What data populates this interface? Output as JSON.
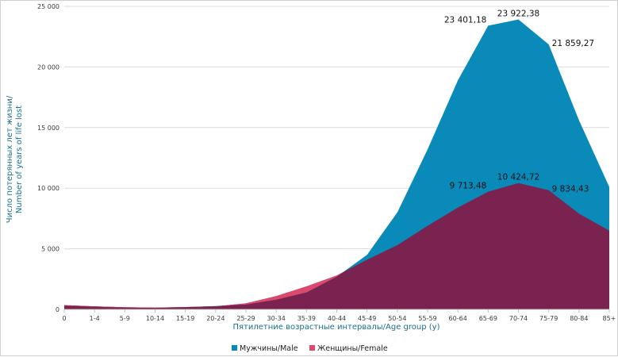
{
  "chart_data": {
    "type": "area",
    "xlabel": "Пятилетние возрастные интервалы/Age group (y)",
    "ylabel_line1": "Число потерянных лет жизни/",
    "ylabel_line2": "Number of years of life lost",
    "ylim": [
      0,
      25000
    ],
    "y_ticks": [
      0,
      5000,
      10000,
      15000,
      20000,
      25000
    ],
    "y_tick_labels": [
      "0",
      "5 000",
      "10 000",
      "15 000",
      "20 000",
      "25 000"
    ],
    "grid": "horizontal",
    "legend_position": "bottom",
    "categories": [
      "0",
      "1-4",
      "5-9",
      "10-14",
      "15-19",
      "20-24",
      "25-29",
      "30-34",
      "35-39",
      "40-44",
      "45-49",
      "50-54",
      "55-59",
      "60-64",
      "65-69",
      "70-74",
      "75-79",
      "80-84",
      "85+"
    ],
    "series": [
      {
        "name": "Мужчины/Male",
        "color": "#0a8ab8",
        "values": [
          300,
          220,
          150,
          120,
          180,
          280,
          400,
          800,
          1400,
          2700,
          4500,
          8000,
          13200,
          18900,
          23401.18,
          23922.38,
          21859.27,
          15600,
          10100
        ],
        "labels": {
          "14": "23 401,18",
          "15": "23 922,38",
          "16": "21 859,27"
        }
      },
      {
        "name": "Женщины/Female",
        "color": "#7a2350",
        "values": [
          350,
          250,
          180,
          150,
          200,
          250,
          500,
          1100,
          1900,
          2800,
          4100,
          5300,
          6900,
          8400,
          9713.48,
          10424.72,
          9834.43,
          7900,
          6500
        ],
        "labels": {
          "14": "9 713,48",
          "15": "10 424,72",
          "16": "9 834,43"
        }
      }
    ],
    "overlap_color": "#d94a6e"
  }
}
